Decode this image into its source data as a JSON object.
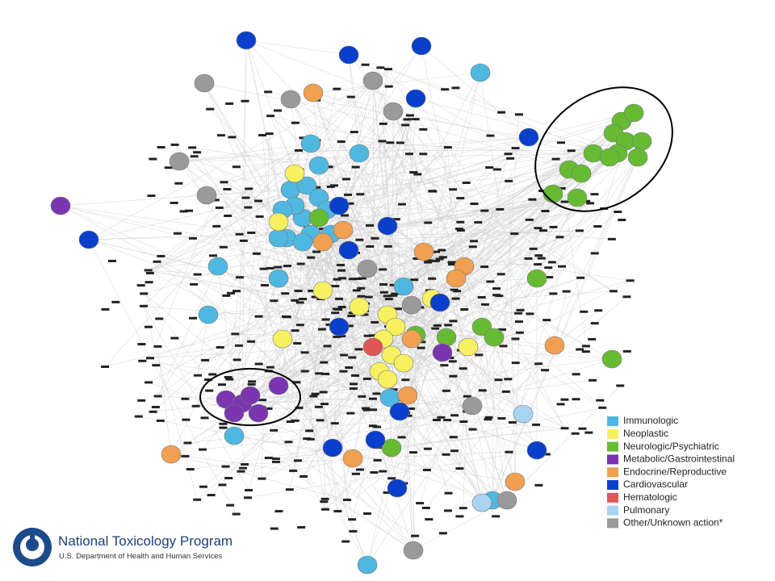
{
  "legend": {
    "items": [
      {
        "label": "Immunologic",
        "color": "#4fb8e0"
      },
      {
        "label": "Neoplastic",
        "color": "#f7f060"
      },
      {
        "label": "Neurologic/Psychiatric",
        "color": "#66bb33"
      },
      {
        "label": "Metabolic/Gastrointestinal",
        "color": "#7a35b0"
      },
      {
        "label": "Endocrine/Reproductive",
        "color": "#f0a050"
      },
      {
        "label": "Cardiovascular",
        "color": "#0a3fcc"
      },
      {
        "label": "Hematologic",
        "color": "#e05555"
      },
      {
        "label": "Pulmonary",
        "color": "#a8d4f2"
      },
      {
        "label": "Other/Unknown action*",
        "color": "#9a9a9a"
      }
    ]
  },
  "logo": {
    "title": "National Toxicology Program",
    "subtitle": "U.S. Department of Health and Human Services"
  }
}
